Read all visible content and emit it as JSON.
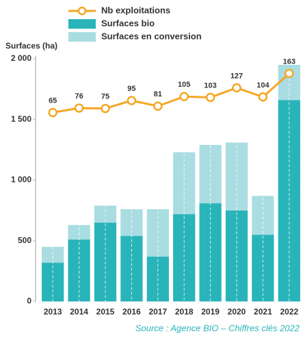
{
  "chart_data": {
    "type": "bar",
    "stacked": true,
    "y_label": "Surfaces (ha)",
    "source": "Source : Agence BIO – Chiffres clés 2022",
    "categories": [
      "2013",
      "2014",
      "2015",
      "2016",
      "2017",
      "2018",
      "2019",
      "2020",
      "2021",
      "2022"
    ],
    "series": [
      {
        "name": "Nb exploitations",
        "type": "line",
        "axis": "y2",
        "color": "#f5a623",
        "values": [
          65,
          76,
          75,
          95,
          81,
          105,
          103,
          127,
          104,
          163
        ]
      },
      {
        "name": "Surfaces bio",
        "color": "#29b4ba",
        "values": [
          320,
          510,
          650,
          540,
          370,
          720,
          810,
          750,
          550,
          1660
        ]
      },
      {
        "name": "Surfaces en conversion",
        "color": "#a9dde1",
        "values": [
          130,
          120,
          140,
          220,
          390,
          510,
          480,
          560,
          320,
          290
        ]
      }
    ],
    "ylim": [
      0,
      2000
    ],
    "yticks": [
      0,
      500,
      {
        "value": 1000,
        "label": "1 000"
      },
      {
        "value": 1500,
        "label": "1 500"
      },
      {
        "value": 2000,
        "label": "2 000"
      }
    ],
    "y2lim": [
      -410,
      200
    ]
  }
}
